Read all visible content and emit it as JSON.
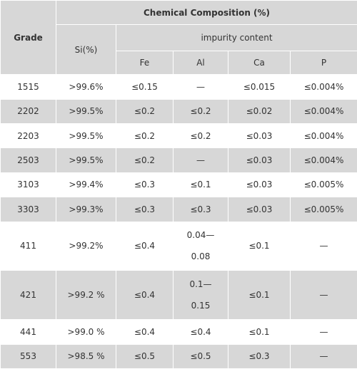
{
  "header": {
    "grade": "Grade",
    "chemical_composition": "Chemical Composition (%)",
    "si": "Si(%)",
    "impurity": "impurity content",
    "fe": "Fe",
    "al": "Al",
    "ca": "Ca",
    "p": "P"
  },
  "rows": [
    {
      "grade": "1515",
      "si": ">99.6%",
      "fe": "≤0.15",
      "al": "—",
      "ca": "≤0.015",
      "p": "≤0.004%"
    },
    {
      "grade": "2202",
      "si": ">99.5%",
      "fe": "≤0.2",
      "al": "≤0.2",
      "ca": "≤0.02",
      "p": "≤0.004%"
    },
    {
      "grade": "2203",
      "si": ">99.5%",
      "fe": "≤0.2",
      "al": "≤0.2",
      "ca": "≤0.03",
      "p": "≤0.004%"
    },
    {
      "grade": "2503",
      "si": ">99.5%",
      "fe": "≤0.2",
      "al": "—",
      "ca": "≤0.03",
      "p": "≤0.004%"
    },
    {
      "grade": "3103",
      "si": ">99.4%",
      "fe": "≤0.3",
      "al": "≤0.1",
      "ca": "≤0.03",
      "p": "≤0.005%"
    },
    {
      "grade": "3303",
      "si": ">99.3%",
      "fe": "≤0.3",
      "al": "≤0.3",
      "ca": "≤0.03",
      "p": "≤0.005%"
    },
    {
      "grade": "411",
      "si": ">99.2%",
      "fe": "≤0.4",
      "al_top": "0.04—",
      "al_bottom": "0.08",
      "ca": "≤0.1",
      "p": "—"
    },
    {
      "grade": "421",
      "si": ">99.2 %",
      "fe": "≤0.4",
      "al_top": "0.1—",
      "al_bottom": "0.15",
      "ca": "≤0.1",
      "p": "—"
    },
    {
      "grade": "441",
      "si": ">99.0 %",
      "fe": "≤0.4",
      "al": "≤0.4",
      "ca": "≤0.1",
      "p": "—"
    },
    {
      "grade": "553",
      "si": ">98.5 %",
      "fe": "≤0.5",
      "al": "≤0.5",
      "ca": "≤0.3",
      "p": "—"
    }
  ]
}
